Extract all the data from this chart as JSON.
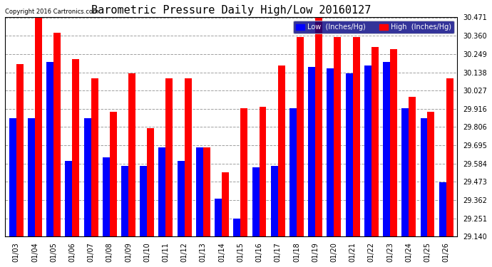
{
  "title": "Barometric Pressure Daily High/Low 20160127",
  "copyright": "Copyright 2016 Cartronics.com",
  "dates": [
    "01/03",
    "01/04",
    "01/05",
    "01/06",
    "01/07",
    "01/08",
    "01/09",
    "01/10",
    "01/11",
    "01/12",
    "01/13",
    "01/14",
    "01/15",
    "01/16",
    "01/17",
    "01/18",
    "01/19",
    "01/20",
    "01/21",
    "01/22",
    "01/23",
    "01/24",
    "01/25",
    "01/26"
  ],
  "low": [
    29.86,
    29.86,
    30.2,
    29.6,
    29.86,
    29.62,
    29.57,
    29.57,
    29.68,
    29.6,
    29.68,
    29.37,
    29.25,
    29.56,
    29.57,
    29.92,
    30.17,
    30.16,
    30.13,
    30.18,
    30.2,
    29.92,
    29.86,
    29.47
  ],
  "high": [
    30.19,
    30.47,
    30.38,
    30.22,
    30.1,
    29.9,
    30.13,
    29.8,
    30.1,
    30.1,
    29.68,
    29.53,
    29.92,
    29.93,
    30.18,
    30.35,
    30.47,
    30.35,
    30.35,
    30.29,
    30.28,
    29.99,
    29.9,
    30.1
  ],
  "ymin": 29.14,
  "ymax": 30.471,
  "yticks": [
    29.14,
    29.251,
    29.362,
    29.473,
    29.584,
    29.695,
    29.806,
    29.916,
    30.027,
    30.138,
    30.249,
    30.36,
    30.471
  ],
  "low_color": "#0000ff",
  "high_color": "#ff0000",
  "bg_color": "#ffffff",
  "grid_color": "#888888",
  "title_fontsize": 11,
  "bar_width": 0.38,
  "legend_low_label": "Low  (Inches/Hg)",
  "legend_high_label": "High  (Inches/Hg)"
}
